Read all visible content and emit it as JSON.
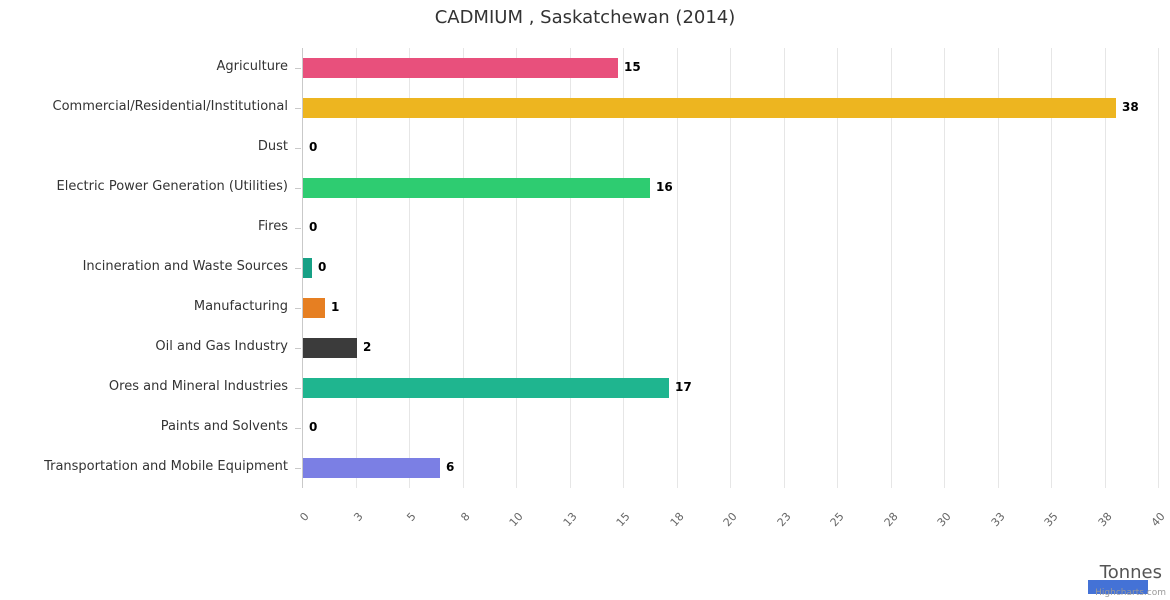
{
  "chart_data": {
    "type": "bar",
    "orientation": "horizontal",
    "title": "CADMIUM , Saskatchewan (2014)",
    "xlabel": "Tonnes",
    "categories": [
      "Agriculture",
      "Commercial/Residential/Institutional",
      "Dust",
      "Electric Power Generation (Utilities)",
      "Fires",
      "Incineration and Waste Sources",
      "Manufacturing",
      "Oil and Gas Industry",
      "Ores and Mineral Industries",
      "Paints and Solvents",
      "Transportation and Mobile Equipment"
    ],
    "values": [
      15,
      38,
      0,
      16,
      0,
      0,
      1,
      2,
      17,
      0,
      6
    ],
    "labels": [
      "15",
      "38",
      "0",
      "16",
      "0",
      "0",
      "1",
      "2",
      "17",
      "0",
      "6"
    ],
    "bar_lengths": [
      14.7,
      38.0,
      0,
      16.2,
      0,
      0.4,
      1.05,
      2.5,
      17.1,
      0,
      6.4
    ],
    "colors": [
      "#e8507c",
      "#edb520",
      "#999999",
      "#2ecc71",
      "#999999",
      "#16a085",
      "#e67f22",
      "#3b3b3b",
      "#1fb58f",
      "#999999",
      "#7b7fe4"
    ],
    "xlim": [
      0,
      40
    ],
    "tick_values": [
      0,
      2.5,
      5,
      7.5,
      10,
      12.5,
      15,
      17.5,
      20,
      22.5,
      25,
      27.5,
      30,
      32.5,
      35,
      37.5,
      40
    ],
    "tick_labels": [
      "0",
      "3",
      "5",
      "8",
      "10",
      "13",
      "15",
      "18",
      "20",
      "23",
      "25",
      "28",
      "30",
      "33",
      "35",
      "38",
      "40"
    ],
    "grid": true,
    "legend": false
  },
  "credits": "Highcharts.com",
  "ui_colors": {
    "gridline": "#e6e6e6",
    "axis": "#c9c9c9",
    "title_text": "#333333",
    "category_text": "#333333",
    "value_text": "#000000",
    "tick_text": "#666666",
    "axis_title_text": "#555555",
    "credits_text": "#999999",
    "blue_rect": "#4472d6"
  }
}
